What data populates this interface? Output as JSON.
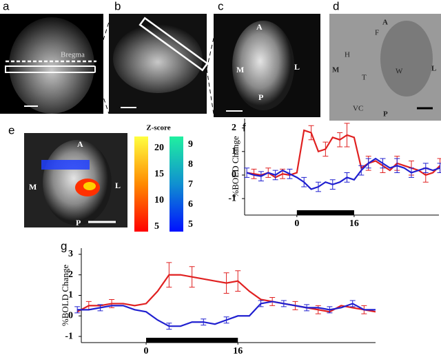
{
  "panels": {
    "a": {
      "label": "a",
      "annotation": "Bregma"
    },
    "b": {
      "label": "b"
    },
    "c": {
      "label": "c",
      "annotations": [
        "A",
        "M",
        "L",
        "P"
      ]
    },
    "d": {
      "label": "d",
      "annotations": [
        "A",
        "F",
        "H",
        "W",
        "M",
        "T",
        "L",
        "VC",
        "P"
      ]
    },
    "e": {
      "label": "e",
      "annotations": [
        "A",
        "M",
        "L",
        "P"
      ]
    }
  },
  "colorbars": {
    "title": "Z-score",
    "warm_ticks": [
      20,
      15,
      10,
      5
    ],
    "cool_ticks": [
      9,
      8,
      7,
      6,
      5
    ]
  },
  "chart_data": [
    {
      "type": "line",
      "label": "f",
      "y_label": "%BOLD Change",
      "xlim": [
        -14.6,
        39.7
      ],
      "ylim": [
        -1.7,
        2.4
      ],
      "yticks": [
        -1,
        0,
        1,
        2
      ],
      "xticks": [
        0,
        16
      ],
      "stimulus": [
        0,
        16
      ],
      "x": [
        -14,
        -12,
        -10,
        -8,
        -6,
        -4,
        -2,
        0,
        2,
        4,
        6,
        8,
        10,
        12,
        14,
        16,
        18,
        20,
        22,
        24,
        26,
        28,
        30,
        32,
        34,
        36,
        38,
        40
      ],
      "series": [
        {
          "color": "#e02020",
          "values": [
            0.1,
            0.05,
            0,
            0.1,
            -0.1,
            0.05,
            0,
            0.1,
            1.9,
            1.8,
            1.0,
            1.1,
            1.6,
            1.5,
            1.7,
            1.6,
            0.3,
            0.5,
            0.6,
            0.4,
            0.2,
            0.5,
            0.4,
            0.3,
            0.2,
            0,
            0.1,
            0.4
          ],
          "errors": [
            null,
            0.2,
            null,
            0.2,
            null,
            0.2,
            null,
            null,
            null,
            0.3,
            null,
            0.3,
            null,
            0.3,
            0.5,
            null,
            null,
            0.3,
            null,
            0.3,
            null,
            0.3,
            null,
            0.3,
            null,
            0.3,
            null,
            0.3
          ]
        },
        {
          "color": "#2020d0",
          "values": [
            0.1,
            0,
            -0.05,
            0.1,
            0,
            0.2,
            0.05,
            -0.1,
            -0.3,
            -0.6,
            -0.5,
            -0.3,
            -0.4,
            -0.3,
            -0.1,
            -0.2,
            0.2,
            0.5,
            0.7,
            0.5,
            0.3,
            0.4,
            0.3,
            0.1,
            0.2,
            0.3,
            0.2,
            0.3
          ],
          "errors": [
            0.2,
            null,
            0.2,
            null,
            0.2,
            null,
            0.2,
            null,
            0.2,
            null,
            0.2,
            null,
            0.2,
            null,
            0.2,
            null,
            0.2,
            0.2,
            null,
            0.2,
            null,
            0.3,
            null,
            0.2,
            null,
            0.2,
            null,
            0.2
          ]
        }
      ]
    },
    {
      "type": "line",
      "label": "g",
      "y_label": "%BOLD Change",
      "xlim": [
        -11.3,
        40
      ],
      "ylim": [
        -1.3,
        3.3
      ],
      "yticks": [
        -1,
        0,
        1,
        2,
        3
      ],
      "xticks": [
        0,
        16
      ],
      "stimulus": [
        0,
        16
      ],
      "x": [
        -12,
        -10,
        -8,
        -6,
        -4,
        -2,
        0,
        2,
        4,
        6,
        8,
        10,
        12,
        14,
        16,
        18,
        20,
        22,
        24,
        26,
        28,
        30,
        32,
        34,
        36,
        38,
        40
      ],
      "series": [
        {
          "color": "#e02020",
          "values": [
            0.2,
            0.5,
            0.5,
            0.6,
            0.6,
            0.5,
            0.6,
            1.2,
            2.0,
            2.0,
            1.9,
            1.8,
            1.7,
            1.6,
            1.7,
            1.2,
            0.8,
            0.7,
            0.6,
            0.5,
            0.4,
            0.3,
            0.2,
            0.5,
            0.4,
            0.3,
            0.2
          ],
          "errors": [
            null,
            0.2,
            null,
            0.2,
            null,
            null,
            null,
            null,
            0.6,
            null,
            0.5,
            null,
            null,
            0.5,
            0.5,
            null,
            null,
            0.2,
            null,
            0.2,
            null,
            0.2,
            null,
            null,
            null,
            0.2,
            null
          ]
        },
        {
          "color": "#2020d0",
          "values": [
            0.3,
            0.3,
            0.4,
            0.5,
            0.5,
            0.3,
            0.2,
            -0.2,
            -0.5,
            -0.5,
            -0.3,
            -0.3,
            -0.4,
            -0.2,
            0,
            0,
            0.6,
            0.7,
            0.6,
            0.5,
            0.4,
            0.4,
            0.3,
            0.4,
            0.6,
            0.3,
            0.3
          ],
          "errors": [
            0.15,
            null,
            0.15,
            null,
            null,
            null,
            null,
            null,
            0.15,
            null,
            null,
            0.15,
            null,
            0.15,
            null,
            null,
            0.15,
            null,
            0.15,
            null,
            0.15,
            null,
            0.15,
            null,
            0.15,
            null,
            null
          ]
        }
      ]
    }
  ]
}
